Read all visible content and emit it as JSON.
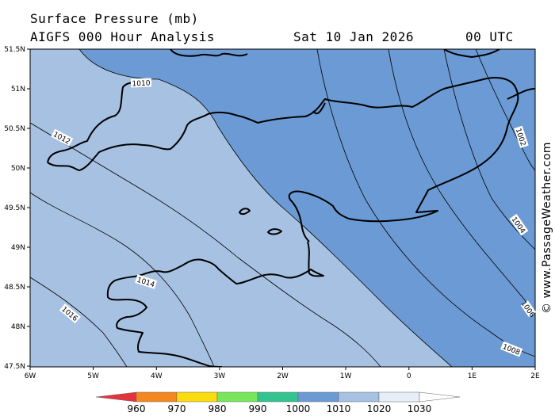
{
  "header": {
    "title": "Surface Pressure (mb)",
    "model_line": "AIGFS 000 Hour Analysis",
    "valid_date": "Sat 10 Jan 2026",
    "valid_time": "00 UTC"
  },
  "credit": "© www.PassageWeather.com",
  "map": {
    "lat_labels": [
      "51.5N",
      "51N",
      "50.5N",
      "50N",
      "49.5N",
      "49N",
      "48.5N",
      "48N",
      "47.5N"
    ],
    "lon_labels": [
      "6W",
      "5W",
      "4W",
      "3W",
      "2W",
      "1W",
      "0",
      "1E",
      "2E"
    ],
    "isobar_labels": [
      "1002",
      "1004",
      "1006",
      "1008",
      "1010",
      "1012",
      "1014",
      "1016"
    ],
    "colors": {
      "band_1000_1010": "#6b9ad4",
      "band_1010_1020": "#a6c1e2",
      "coastline": "#000000",
      "isobar": "#000000"
    }
  },
  "colorbar": {
    "labels": [
      "960",
      "970",
      "980",
      "990",
      "1000",
      "1010",
      "1020",
      "1030"
    ],
    "colors": [
      "#e6323c",
      "#f5871f",
      "#fadc0f",
      "#78e65a",
      "#32c391",
      "#6b9ad4",
      "#a6c1e2",
      "#e6eef8"
    ]
  }
}
